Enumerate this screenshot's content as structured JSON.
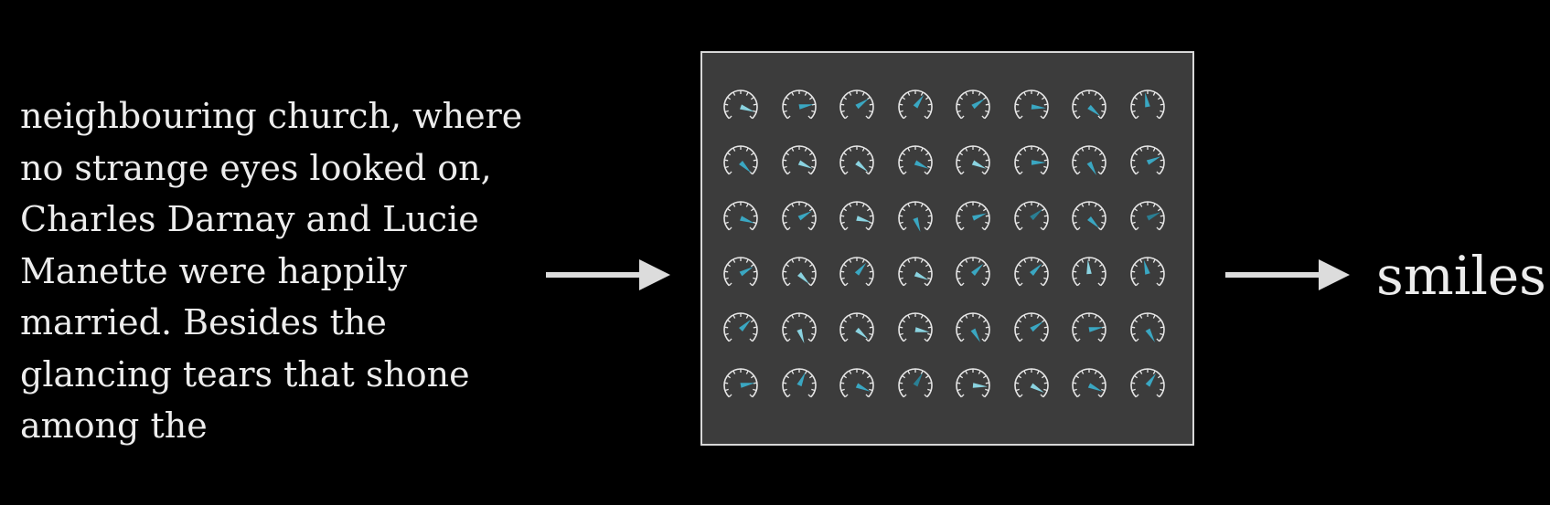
{
  "input_text": {
    "lines": [
      "neighbouring church, where",
      "no strange eyes looked on,",
      "Charles Darnay and Lucie",
      "Manette were happily",
      "married. Besides the",
      "glancing tears that shone",
      "among the"
    ]
  },
  "output": {
    "word": "smiles"
  },
  "network": {
    "rows": 6,
    "cols": 8,
    "dial_icon": "gauge-dial-icon",
    "needle_colors": {
      "light": "#8ad3e0",
      "mid": "#3aa7c2",
      "dark": "#2a7f94"
    },
    "needle_angles": [
      [
        110,
        80,
        55,
        35,
        55,
        95,
        130,
        350
      ],
      [
        135,
        115,
        130,
        115,
        115,
        90,
        150,
        65
      ],
      [
        110,
        60,
        105,
        160,
        70,
        50,
        135,
        65
      ],
      [
        60,
        135,
        40,
        115,
        45,
        45,
        355,
        345
      ],
      [
        45,
        160,
        130,
        100,
        150,
        55,
        80,
        150
      ],
      [
        80,
        25,
        115,
        30,
        95,
        120,
        115,
        35
      ]
    ],
    "needle_tones": [
      [
        "light",
        "mid",
        "mid",
        "mid",
        "mid",
        "mid",
        "mid",
        "mid"
      ],
      [
        "mid",
        "light",
        "light",
        "mid",
        "light",
        "mid",
        "mid",
        "mid"
      ],
      [
        "mid",
        "mid",
        "light",
        "mid",
        "mid",
        "dark",
        "mid",
        "dark"
      ],
      [
        "mid",
        "light",
        "mid",
        "light",
        "mid",
        "mid",
        "light",
        "mid"
      ],
      [
        "mid",
        "light",
        "light",
        "light",
        "mid",
        "mid",
        "mid",
        "mid"
      ],
      [
        "mid",
        "mid",
        "mid",
        "dark",
        "light",
        "light",
        "mid",
        "mid"
      ]
    ]
  }
}
